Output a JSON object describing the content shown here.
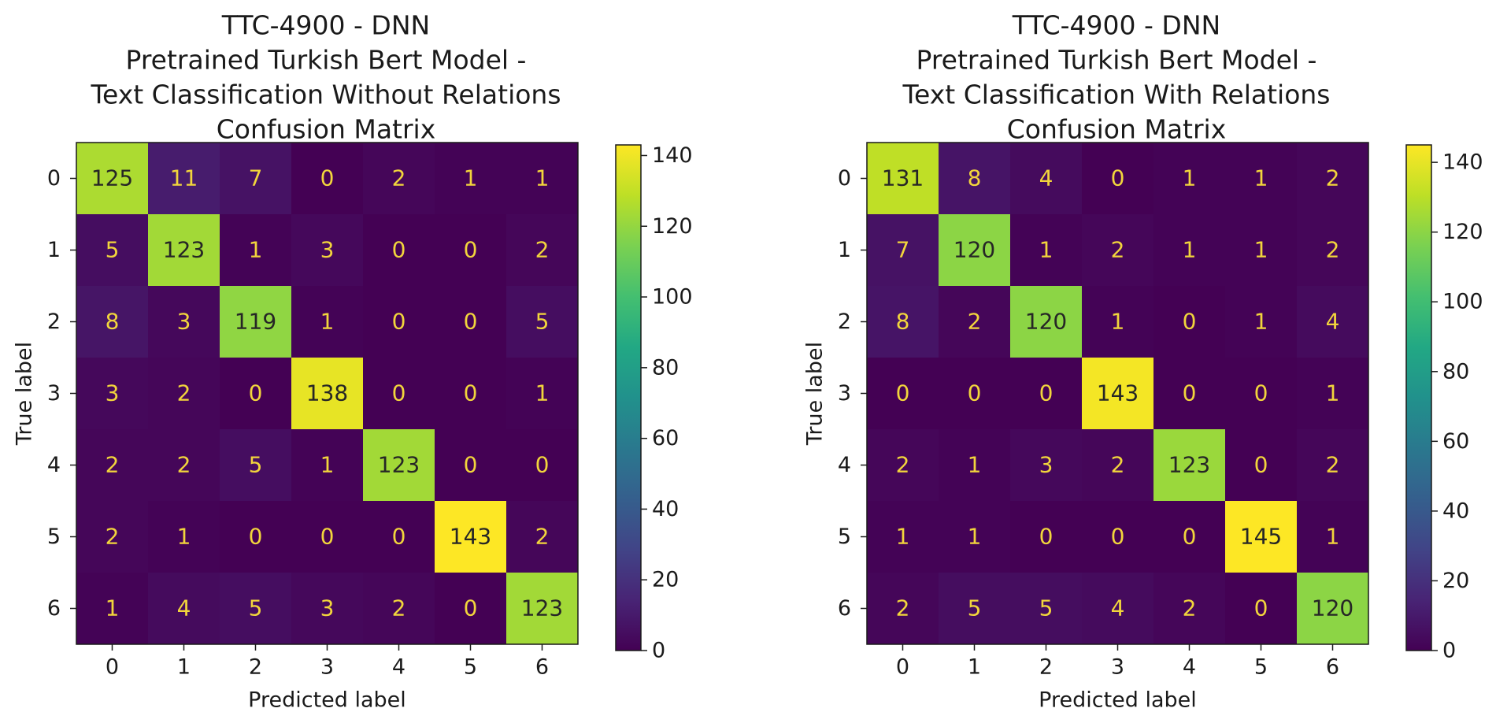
{
  "chart_data": [
    {
      "type": "heatmap",
      "title": [
        "TTC-4900 - DNN",
        "Pretrained Turkish Bert Model -",
        "Text Classification Without Relations",
        "Confusion Matrix"
      ],
      "xlabel": "Predicted label",
      "ylabel": "True label",
      "x_categories": [
        "0",
        "1",
        "2",
        "3",
        "4",
        "5",
        "6"
      ],
      "y_categories": [
        "0",
        "1",
        "2",
        "3",
        "4",
        "5",
        "6"
      ],
      "values": [
        [
          125,
          11,
          7,
          0,
          2,
          1,
          1
        ],
        [
          5,
          123,
          1,
          3,
          0,
          0,
          2
        ],
        [
          8,
          3,
          119,
          1,
          0,
          0,
          5
        ],
        [
          3,
          2,
          0,
          138,
          0,
          0,
          1
        ],
        [
          2,
          2,
          5,
          1,
          123,
          0,
          0
        ],
        [
          2,
          1,
          0,
          0,
          0,
          143,
          2
        ],
        [
          1,
          4,
          5,
          3,
          2,
          0,
          123
        ]
      ],
      "colorscale": "viridis",
      "colorbar": {
        "range": [
          0,
          143
        ],
        "ticks": [
          "0",
          "20",
          "40",
          "60",
          "80",
          "100",
          "120",
          "140"
        ]
      }
    },
    {
      "type": "heatmap",
      "title": [
        "TTC-4900 - DNN",
        "Pretrained Turkish Bert Model -",
        "Text Classification With Relations",
        "Confusion Matrix"
      ],
      "xlabel": "Predicted label",
      "ylabel": "True label",
      "x_categories": [
        "0",
        "1",
        "2",
        "3",
        "4",
        "5",
        "6"
      ],
      "y_categories": [
        "0",
        "1",
        "2",
        "3",
        "4",
        "5",
        "6"
      ],
      "values": [
        [
          131,
          8,
          4,
          0,
          1,
          1,
          2
        ],
        [
          7,
          120,
          1,
          2,
          1,
          1,
          2
        ],
        [
          8,
          2,
          120,
          1,
          0,
          1,
          4
        ],
        [
          0,
          0,
          0,
          143,
          0,
          0,
          1
        ],
        [
          2,
          1,
          3,
          2,
          123,
          0,
          2
        ],
        [
          1,
          1,
          0,
          0,
          0,
          145,
          1
        ],
        [
          2,
          5,
          5,
          4,
          2,
          0,
          120
        ]
      ],
      "colorscale": "viridis",
      "colorbar": {
        "range": [
          0,
          145
        ],
        "ticks": [
          "0",
          "20",
          "40",
          "60",
          "80",
          "100",
          "120",
          "140"
        ]
      }
    }
  ]
}
